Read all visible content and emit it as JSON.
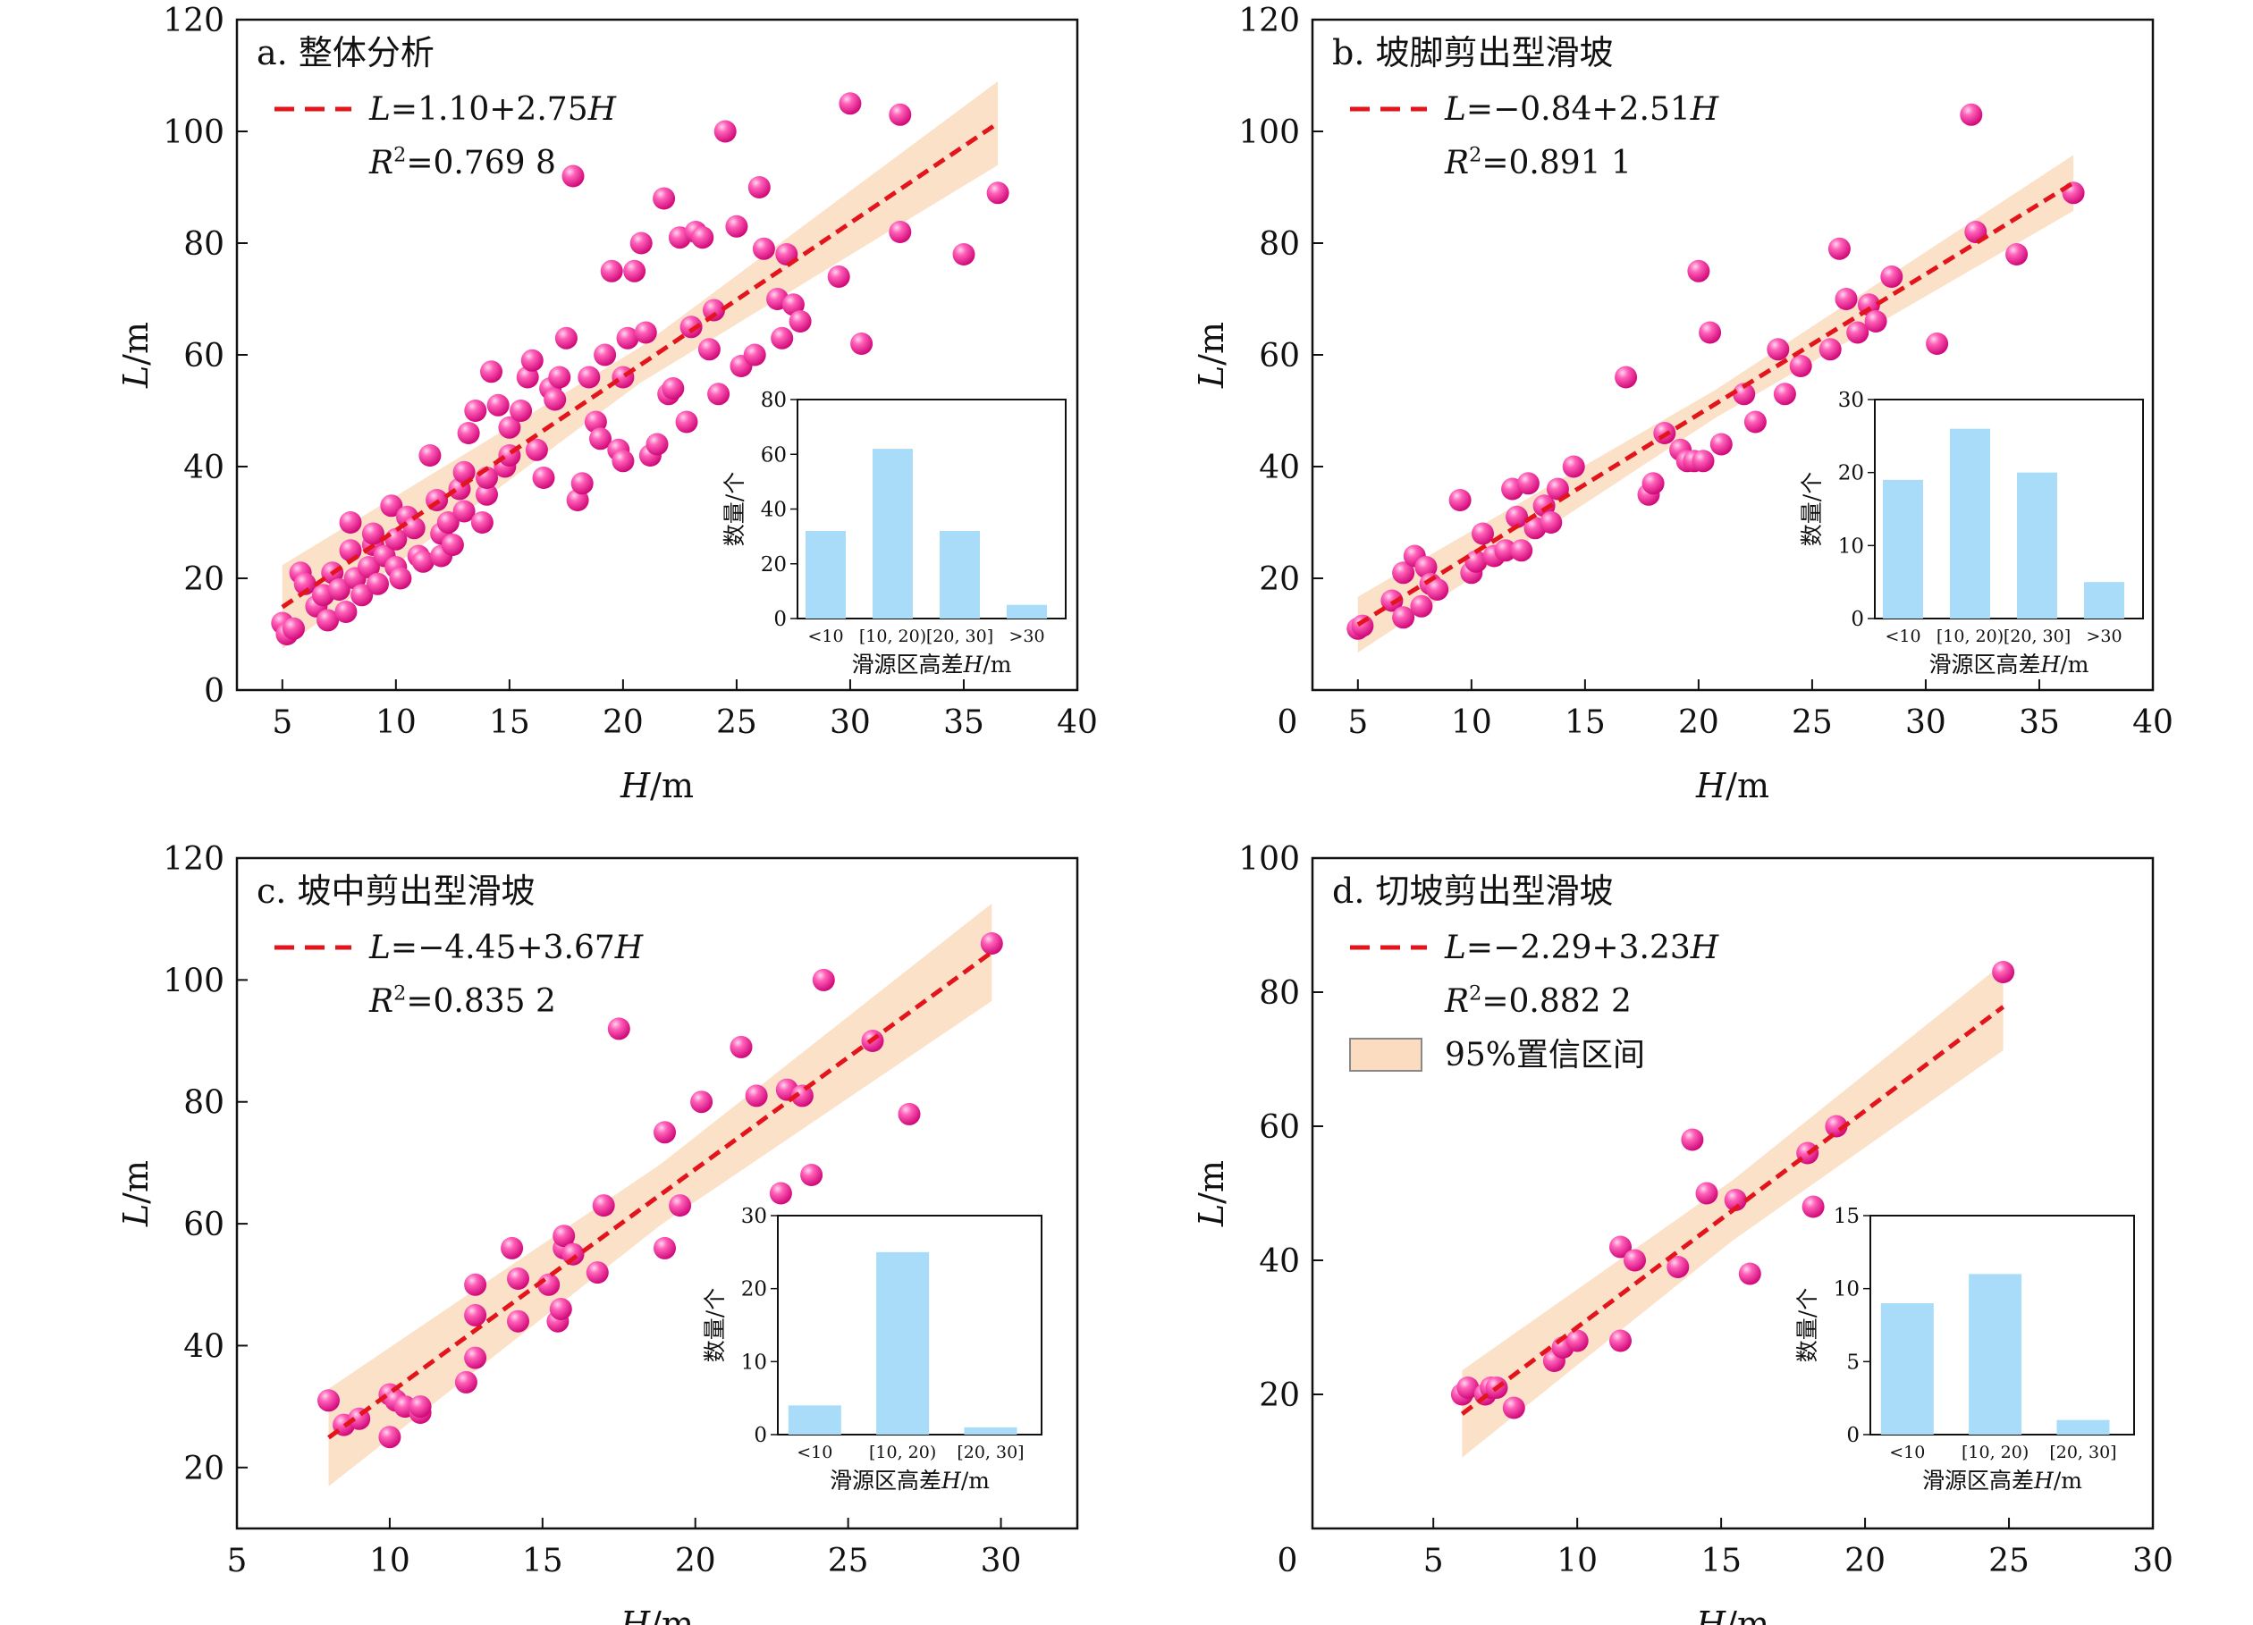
{
  "chart_data": [
    {
      "type": "scatter",
      "panel_label": "a. 整体分析",
      "xlabel": "H/m",
      "ylabel": "L/m",
      "xlim": [
        3,
        40
      ],
      "ylim": [
        0,
        120
      ],
      "xticks": [
        5,
        10,
        15,
        20,
        25,
        30,
        35,
        40
      ],
      "yticks": [
        0,
        20,
        40,
        60,
        80,
        100,
        120
      ],
      "equation": "L=1.10+2.75H",
      "r2": "R2=0.769 8",
      "fit": {
        "intercept": 1.1,
        "slope": 2.75,
        "x_range": [
          5,
          36.5
        ],
        "ci_half_width": [
          3.2,
          7.5
        ]
      },
      "points": [
        [
          5.0,
          12
        ],
        [
          5.2,
          10
        ],
        [
          5.5,
          11
        ],
        [
          5.8,
          21
        ],
        [
          6.0,
          19
        ],
        [
          6.5,
          15
        ],
        [
          6.8,
          17
        ],
        [
          7.0,
          12.5
        ],
        [
          7.2,
          21
        ],
        [
          7.5,
          18
        ],
        [
          7.8,
          14
        ],
        [
          8.0,
          25
        ],
        [
          8.0,
          30
        ],
        [
          8.2,
          20
        ],
        [
          8.5,
          17
        ],
        [
          8.8,
          22
        ],
        [
          9.0,
          26
        ],
        [
          9.0,
          28
        ],
        [
          9.2,
          19
        ],
        [
          9.5,
          24
        ],
        [
          9.8,
          33
        ],
        [
          10.0,
          22
        ],
        [
          10.0,
          27
        ],
        [
          10.2,
          20
        ],
        [
          10.5,
          31
        ],
        [
          10.8,
          29
        ],
        [
          11.0,
          24
        ],
        [
          11.2,
          23
        ],
        [
          11.5,
          42
        ],
        [
          11.8,
          34
        ],
        [
          12.0,
          28
        ],
        [
          12.0,
          24
        ],
        [
          12.3,
          30
        ],
        [
          12.5,
          26
        ],
        [
          12.8,
          36
        ],
        [
          13.0,
          32
        ],
        [
          13.0,
          39
        ],
        [
          13.2,
          46
        ],
        [
          13.5,
          50
        ],
        [
          13.8,
          30
        ],
        [
          14.0,
          35
        ],
        [
          14.0,
          38
        ],
        [
          14.2,
          57
        ],
        [
          14.5,
          51
        ],
        [
          14.8,
          40
        ],
        [
          15.0,
          42
        ],
        [
          15.0,
          47
        ],
        [
          15.5,
          50
        ],
        [
          15.8,
          56
        ],
        [
          16.0,
          59
        ],
        [
          16.2,
          43
        ],
        [
          16.5,
          38
        ],
        [
          16.8,
          54
        ],
        [
          17.0,
          52
        ],
        [
          17.2,
          56
        ],
        [
          17.5,
          63
        ],
        [
          17.8,
          92
        ],
        [
          18.0,
          34
        ],
        [
          18.2,
          37
        ],
        [
          18.5,
          56
        ],
        [
          18.8,
          48
        ],
        [
          19.0,
          45
        ],
        [
          19.2,
          60
        ],
        [
          19.5,
          75
        ],
        [
          19.8,
          43
        ],
        [
          20.0,
          56
        ],
        [
          20.0,
          41
        ],
        [
          20.2,
          63
        ],
        [
          20.5,
          75
        ],
        [
          20.8,
          80
        ],
        [
          21.0,
          64
        ],
        [
          21.2,
          42
        ],
        [
          21.5,
          44
        ],
        [
          21.8,
          88
        ],
        [
          22.0,
          53
        ],
        [
          22.2,
          54
        ],
        [
          22.5,
          81
        ],
        [
          22.8,
          48
        ],
        [
          23.0,
          65
        ],
        [
          23.2,
          82
        ],
        [
          23.5,
          81
        ],
        [
          23.8,
          61
        ],
        [
          24.0,
          68
        ],
        [
          24.2,
          53
        ],
        [
          24.5,
          100
        ],
        [
          25.0,
          83
        ],
        [
          25.2,
          58
        ],
        [
          25.8,
          60
        ],
        [
          26.0,
          90
        ],
        [
          26.2,
          79
        ],
        [
          26.8,
          70
        ],
        [
          27.0,
          63
        ],
        [
          27.2,
          78
        ],
        [
          27.5,
          69
        ],
        [
          27.8,
          66
        ],
        [
          29.5,
          74
        ],
        [
          30.0,
          105
        ],
        [
          30.5,
          62
        ],
        [
          32.2,
          103
        ],
        [
          32.2,
          82
        ],
        [
          35.0,
          78
        ],
        [
          36.5,
          89
        ]
      ],
      "inset": {
        "type": "bar",
        "categories": [
          "<10",
          "[10, 20)",
          "[20, 30]",
          ">30"
        ],
        "values": [
          32,
          62,
          32,
          5
        ],
        "ylim": [
          0,
          80
        ],
        "yticks": [
          0,
          20,
          40,
          60,
          80
        ],
        "xlabel": "滑源区高差H/m",
        "ylabel": "数量/个"
      }
    },
    {
      "type": "scatter",
      "panel_label": "b. 坡脚剪出型滑坡",
      "xlabel": "H/m",
      "ylabel": "L/m",
      "xlim": [
        3,
        40
      ],
      "ylim": [
        0,
        120
      ],
      "xticks": [
        5,
        10,
        15,
        20,
        25,
        30,
        35,
        40
      ],
      "yticks": [
        20,
        40,
        60,
        80,
        100,
        120
      ],
      "x_zero_label": "0",
      "equation": "L=−0.84+2.51H",
      "r2": "R2=0.891 1",
      "fit": {
        "intercept": -0.84,
        "slope": 2.51,
        "x_range": [
          5,
          36.5
        ],
        "ci_half_width": [
          2.5,
          5
        ]
      },
      "points": [
        [
          5.0,
          11
        ],
        [
          5.2,
          11.5
        ],
        [
          6.5,
          16
        ],
        [
          7.0,
          13
        ],
        [
          7.0,
          21
        ],
        [
          7.5,
          24
        ],
        [
          7.8,
          15
        ],
        [
          8.0,
          22
        ],
        [
          8.2,
          19
        ],
        [
          8.5,
          18
        ],
        [
          9.5,
          34
        ],
        [
          10.0,
          21
        ],
        [
          10.2,
          23
        ],
        [
          10.5,
          28
        ],
        [
          11.0,
          24
        ],
        [
          11.5,
          25
        ],
        [
          11.8,
          36
        ],
        [
          12.0,
          31
        ],
        [
          12.2,
          25
        ],
        [
          12.5,
          37
        ],
        [
          12.8,
          29
        ],
        [
          13.2,
          33
        ],
        [
          13.5,
          30
        ],
        [
          13.8,
          36
        ],
        [
          14.5,
          40
        ],
        [
          16.8,
          56
        ],
        [
          17.8,
          35
        ],
        [
          18.0,
          37
        ],
        [
          18.5,
          46
        ],
        [
          19.2,
          43
        ],
        [
          19.5,
          41
        ],
        [
          19.8,
          41
        ],
        [
          20.0,
          75
        ],
        [
          20.2,
          41
        ],
        [
          20.5,
          64
        ],
        [
          21.0,
          44
        ],
        [
          22.0,
          53
        ],
        [
          22.5,
          48
        ],
        [
          23.5,
          61
        ],
        [
          23.8,
          53
        ],
        [
          24.5,
          58
        ],
        [
          25.8,
          61
        ],
        [
          26.2,
          79
        ],
        [
          26.5,
          70
        ],
        [
          27.0,
          64
        ],
        [
          27.5,
          69
        ],
        [
          27.8,
          66
        ],
        [
          28.5,
          74
        ],
        [
          30.5,
          62
        ],
        [
          32.0,
          103
        ],
        [
          32.2,
          82
        ],
        [
          34.0,
          78
        ],
        [
          36.5,
          89
        ]
      ],
      "inset": {
        "type": "bar",
        "categories": [
          "<10",
          "[10, 20)",
          "[20, 30]",
          ">30"
        ],
        "values": [
          19,
          26,
          20,
          5
        ],
        "ylim": [
          0,
          30
        ],
        "yticks": [
          0,
          10,
          20,
          30
        ],
        "xlabel": "滑源区高差H/m",
        "ylabel": "数量/个"
      }
    },
    {
      "type": "scatter",
      "panel_label": "c. 坡中剪出型滑坡",
      "xlabel": "H/m",
      "ylabel": "L/m",
      "xlim": [
        5,
        32.5
      ],
      "ylim": [
        10,
        120
      ],
      "xticks": [
        5,
        10,
        15,
        20,
        25,
        30
      ],
      "yticks": [
        20,
        40,
        60,
        80,
        100,
        120
      ],
      "equation": "L=−4.45+3.67H",
      "r2": "R2=0.835 2",
      "fit": {
        "intercept": -4.45,
        "slope": 3.67,
        "x_range": [
          8,
          29.7
        ],
        "ci_half_width": [
          5,
          8
        ]
      },
      "points": [
        [
          8.0,
          31
        ],
        [
          8.5,
          27
        ],
        [
          9.0,
          28
        ],
        [
          10.0,
          25
        ],
        [
          10.0,
          32
        ],
        [
          10.2,
          31
        ],
        [
          10.5,
          30
        ],
        [
          11.0,
          29
        ],
        [
          11.0,
          30
        ],
        [
          12.5,
          34
        ],
        [
          12.8,
          38
        ],
        [
          12.8,
          45
        ],
        [
          12.8,
          50
        ],
        [
          14.0,
          56
        ],
        [
          14.2,
          51
        ],
        [
          14.2,
          44
        ],
        [
          15.2,
          50
        ],
        [
          15.5,
          44
        ],
        [
          15.6,
          46
        ],
        [
          15.7,
          56
        ],
        [
          15.7,
          58
        ],
        [
          16.0,
          55
        ],
        [
          16.8,
          52
        ],
        [
          17.0,
          63
        ],
        [
          17.5,
          92
        ],
        [
          19.0,
          56
        ],
        [
          19.0,
          75
        ],
        [
          19.5,
          63
        ],
        [
          20.2,
          80
        ],
        [
          21.5,
          89
        ],
        [
          22.0,
          81
        ],
        [
          22.8,
          65
        ],
        [
          23.0,
          82
        ],
        [
          23.5,
          81
        ],
        [
          23.8,
          68
        ],
        [
          24.2,
          100
        ],
        [
          25.8,
          90
        ],
        [
          27.0,
          78
        ],
        [
          29.7,
          106
        ]
      ],
      "inset": {
        "type": "bar",
        "categories": [
          "<10",
          "[10, 20)",
          "[20, 30]"
        ],
        "values": [
          4,
          25,
          1
        ],
        "ylim": [
          0,
          30
        ],
        "yticks": [
          0,
          10,
          20,
          30
        ],
        "xlabel": "滑源区高差H/m",
        "ylabel": "数量/个"
      }
    },
    {
      "type": "scatter",
      "panel_label": "d. 切坡剪出型滑坡",
      "xlabel": "H/m",
      "ylabel": "L/m",
      "xlim": [
        0.8,
        30
      ],
      "ylim": [
        0,
        100
      ],
      "xticks": [
        5,
        10,
        15,
        20,
        25,
        30
      ],
      "yticks": [
        20,
        40,
        60,
        80,
        100
      ],
      "x_zero_label": "0",
      "equation": "L=−2.29+3.23H",
      "r2": "R2=0.882 2",
      "ci_legend": "95%置信区间",
      "fit": {
        "intercept": -2.29,
        "slope": 3.23,
        "x_range": [
          6,
          24.8
        ],
        "ci_half_width": [
          4.5,
          6.5
        ]
      },
      "points": [
        [
          6.0,
          20
        ],
        [
          6.2,
          21
        ],
        [
          6.8,
          20
        ],
        [
          7.0,
          21
        ],
        [
          7.2,
          21
        ],
        [
          7.8,
          18
        ],
        [
          9.2,
          25
        ],
        [
          9.5,
          27
        ],
        [
          10.0,
          28
        ],
        [
          11.5,
          42
        ],
        [
          11.5,
          28
        ],
        [
          12.0,
          40
        ],
        [
          13.5,
          39
        ],
        [
          14.0,
          58
        ],
        [
          14.5,
          50
        ],
        [
          15.5,
          49
        ],
        [
          16.0,
          38
        ],
        [
          18.0,
          56
        ],
        [
          18.2,
          48
        ],
        [
          19.0,
          60
        ],
        [
          24.8,
          83
        ]
      ],
      "inset": {
        "type": "bar",
        "categories": [
          "<10",
          "[10, 20)",
          "[20, 30]"
        ],
        "values": [
          9,
          11,
          1
        ],
        "ylim": [
          0,
          15
        ],
        "yticks": [
          0,
          5,
          10,
          15
        ],
        "xlabel": "滑源区高差H/m",
        "ylabel": "数量/个"
      }
    }
  ]
}
